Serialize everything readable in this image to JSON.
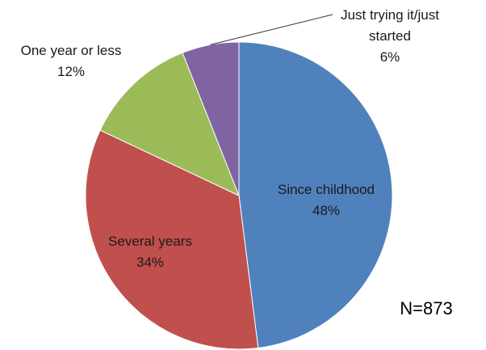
{
  "chart_data": {
    "type": "pie",
    "title": "",
    "slices": [
      {
        "label": "Since childhood",
        "value": 48,
        "value_label": "48%",
        "color": "#4F81BD"
      },
      {
        "label": "Several years",
        "value": 34,
        "value_label": "34%",
        "color": "#C0504D"
      },
      {
        "label": "One year or less",
        "value": 12,
        "value_label": "12%",
        "color": "#9BBB59"
      },
      {
        "label_lines": [
          "Just trying it/just",
          "started"
        ],
        "value": 6,
        "value_label": "6%",
        "color": "#8064A2"
      }
    ],
    "legend": "none",
    "annotation": "N=873"
  }
}
